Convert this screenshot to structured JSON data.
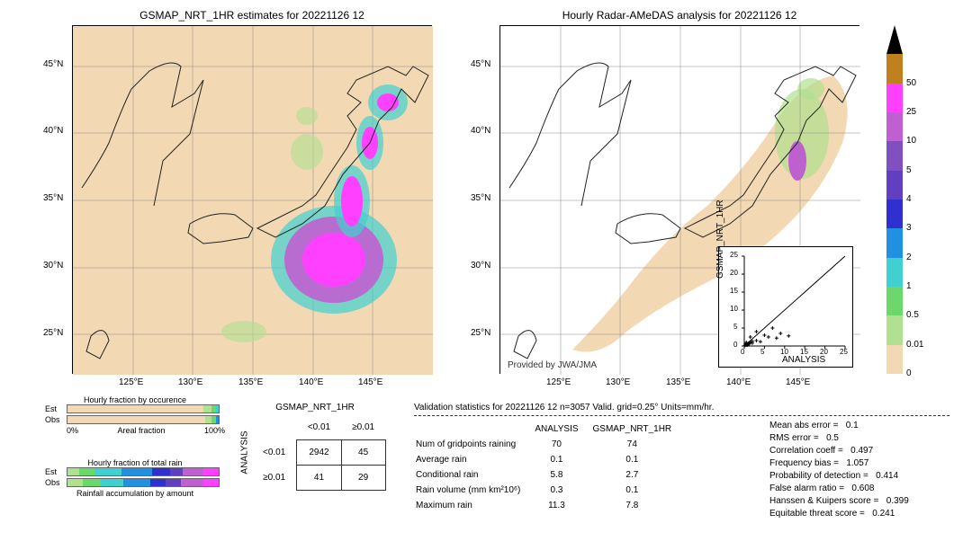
{
  "map1": {
    "title": "GSMAP_NRT_1HR estimates for 20221126 12",
    "xlim": [
      120,
      150
    ],
    "ylim": [
      22,
      48
    ],
    "xticks": [
      "125°E",
      "130°E",
      "135°E",
      "140°E",
      "145°E"
    ],
    "yticks": [
      "25°N",
      "30°N",
      "35°N",
      "40°N",
      "45°N"
    ],
    "bg_color": "#f2d9b3"
  },
  "map2": {
    "title": "Hourly Radar-AMeDAS analysis for 20221126 12",
    "xlim": [
      120,
      150
    ],
    "ylim": [
      22,
      48
    ],
    "xticks": [
      "125°E",
      "130°E",
      "135°E",
      "140°E",
      "145°E"
    ],
    "yticks": [
      "25°N",
      "30°N",
      "35°N",
      "40°N",
      "45°N"
    ],
    "bg_color": "#f2d9b3",
    "attribution": "Provided by JWA/JMA"
  },
  "colorbar": {
    "levels": [
      0,
      0.01,
      0.5,
      1,
      2,
      3,
      4,
      5,
      10,
      25,
      50
    ],
    "colors": [
      "#f2d9b3",
      "#b0e090",
      "#6cd86c",
      "#40d0d0",
      "#2090e0",
      "#3030d0",
      "#6040c0",
      "#8050c0",
      "#c060d0",
      "#ff40ff",
      "#c08020",
      "#000000"
    ],
    "tick_labels": [
      "0",
      "0.01",
      "0.5",
      "1",
      "2",
      "3",
      "4",
      "5",
      "10",
      "25",
      "50"
    ]
  },
  "scatter": {
    "xlabel": "ANALYSIS",
    "ylabel": "GSMAP_NRT_1HR",
    "xlim": [
      0,
      25
    ],
    "ylim": [
      0,
      25
    ],
    "xticks": [
      "0",
      "5",
      "10",
      "15",
      "20",
      "25"
    ],
    "yticks": [
      "0",
      "5",
      "10",
      "15",
      "20",
      "25"
    ],
    "points": [
      [
        0.2,
        0.2
      ],
      [
        0.5,
        0.3
      ],
      [
        0.8,
        0.5
      ],
      [
        1,
        0.7
      ],
      [
        1.2,
        0.5
      ],
      [
        1.5,
        1
      ],
      [
        2,
        1.3
      ],
      [
        1.5,
        2.5
      ],
      [
        3,
        1.5
      ],
      [
        2,
        0.8
      ],
      [
        4,
        1.2
      ],
      [
        6,
        2.5
      ],
      [
        5,
        3
      ],
      [
        8,
        2.2
      ],
      [
        11,
        2.8
      ],
      [
        9,
        3.5
      ],
      [
        7,
        5
      ],
      [
        3,
        4
      ],
      [
        0.5,
        1
      ],
      [
        0.3,
        0.6
      ],
      [
        0.7,
        0.2
      ]
    ]
  },
  "occurrence_bars": {
    "title": "Hourly fraction by occurence",
    "x_axis_title": "Areal fraction",
    "x_min": "0%",
    "x_max": "100%",
    "rows": [
      {
        "label": "Est",
        "segs": [
          {
            "w": 90,
            "c": "#f2d9b3"
          },
          {
            "w": 5,
            "c": "#b0e090"
          },
          {
            "w": 3,
            "c": "#6cd86c"
          },
          {
            "w": 2,
            "c": "#40d0d0"
          }
        ]
      },
      {
        "label": "Obs",
        "segs": [
          {
            "w": 91,
            "c": "#f2d9b3"
          },
          {
            "w": 4,
            "c": "#b0e090"
          },
          {
            "w": 3,
            "c": "#6cd86c"
          },
          {
            "w": 2,
            "c": "#2090e0"
          }
        ]
      }
    ]
  },
  "rain_bars": {
    "title": "Hourly fraction of total rain",
    "footer": "Rainfall accumulation by amount",
    "rows": [
      {
        "label": "Est",
        "segs": [
          {
            "w": 8,
            "c": "#b0e090"
          },
          {
            "w": 10,
            "c": "#6cd86c"
          },
          {
            "w": 18,
            "c": "#40d0d0"
          },
          {
            "w": 20,
            "c": "#2090e0"
          },
          {
            "w": 12,
            "c": "#3030d0"
          },
          {
            "w": 8,
            "c": "#6040c0"
          },
          {
            "w": 14,
            "c": "#c060d0"
          },
          {
            "w": 10,
            "c": "#ff40ff"
          }
        ]
      },
      {
        "label": "Obs",
        "segs": [
          {
            "w": 10,
            "c": "#b0e090"
          },
          {
            "w": 12,
            "c": "#6cd86c"
          },
          {
            "w": 15,
            "c": "#40d0d0"
          },
          {
            "w": 18,
            "c": "#2090e0"
          },
          {
            "w": 10,
            "c": "#3030d0"
          },
          {
            "w": 10,
            "c": "#6040c0"
          },
          {
            "w": 15,
            "c": "#c060d0"
          },
          {
            "w": 10,
            "c": "#ff40ff"
          }
        ]
      }
    ]
  },
  "contingency": {
    "col_header": "GSMAP_NRT_1HR",
    "row_header": "ANALYSIS",
    "col_labels": [
      "<0.01",
      "≥0.01"
    ],
    "row_labels": [
      "<0.01",
      "≥0.01"
    ],
    "cells": [
      [
        2942,
        45
      ],
      [
        41,
        29
      ]
    ]
  },
  "stats_header": {
    "title": "Validation statistics for 20221126 12  n=3057 Valid. grid=0.25° Units=mm/hr.",
    "cols": [
      "",
      "ANALYSIS",
      "GSMAP_NRT_1HR"
    ]
  },
  "stats_rows": [
    {
      "label": "Num of gridpoints raining",
      "a": "70",
      "b": "74"
    },
    {
      "label": "Average rain",
      "a": "0.1",
      "b": "0.1"
    },
    {
      "label": "Conditional rain",
      "a": "5.8",
      "b": "2.7"
    },
    {
      "label": "Rain volume (mm km²10⁶)",
      "a": "0.3",
      "b": "0.1"
    },
    {
      "label": "Maximum rain",
      "a": "11.3",
      "b": "7.8"
    }
  ],
  "stats_metrics": [
    {
      "label": "Mean abs error =",
      "v": "0.1"
    },
    {
      "label": "RMS error =",
      "v": "0.5"
    },
    {
      "label": "Correlation coeff =",
      "v": "0.497"
    },
    {
      "label": "Frequency bias =",
      "v": "1.057"
    },
    {
      "label": "Probability of detection =",
      "v": "0.414"
    },
    {
      "label": "False alarm ratio =",
      "v": "0.608"
    },
    {
      "label": "Hanssen & Kuipers score =",
      "v": "0.399"
    },
    {
      "label": "Equitable threat score =",
      "v": "0.241"
    }
  ]
}
